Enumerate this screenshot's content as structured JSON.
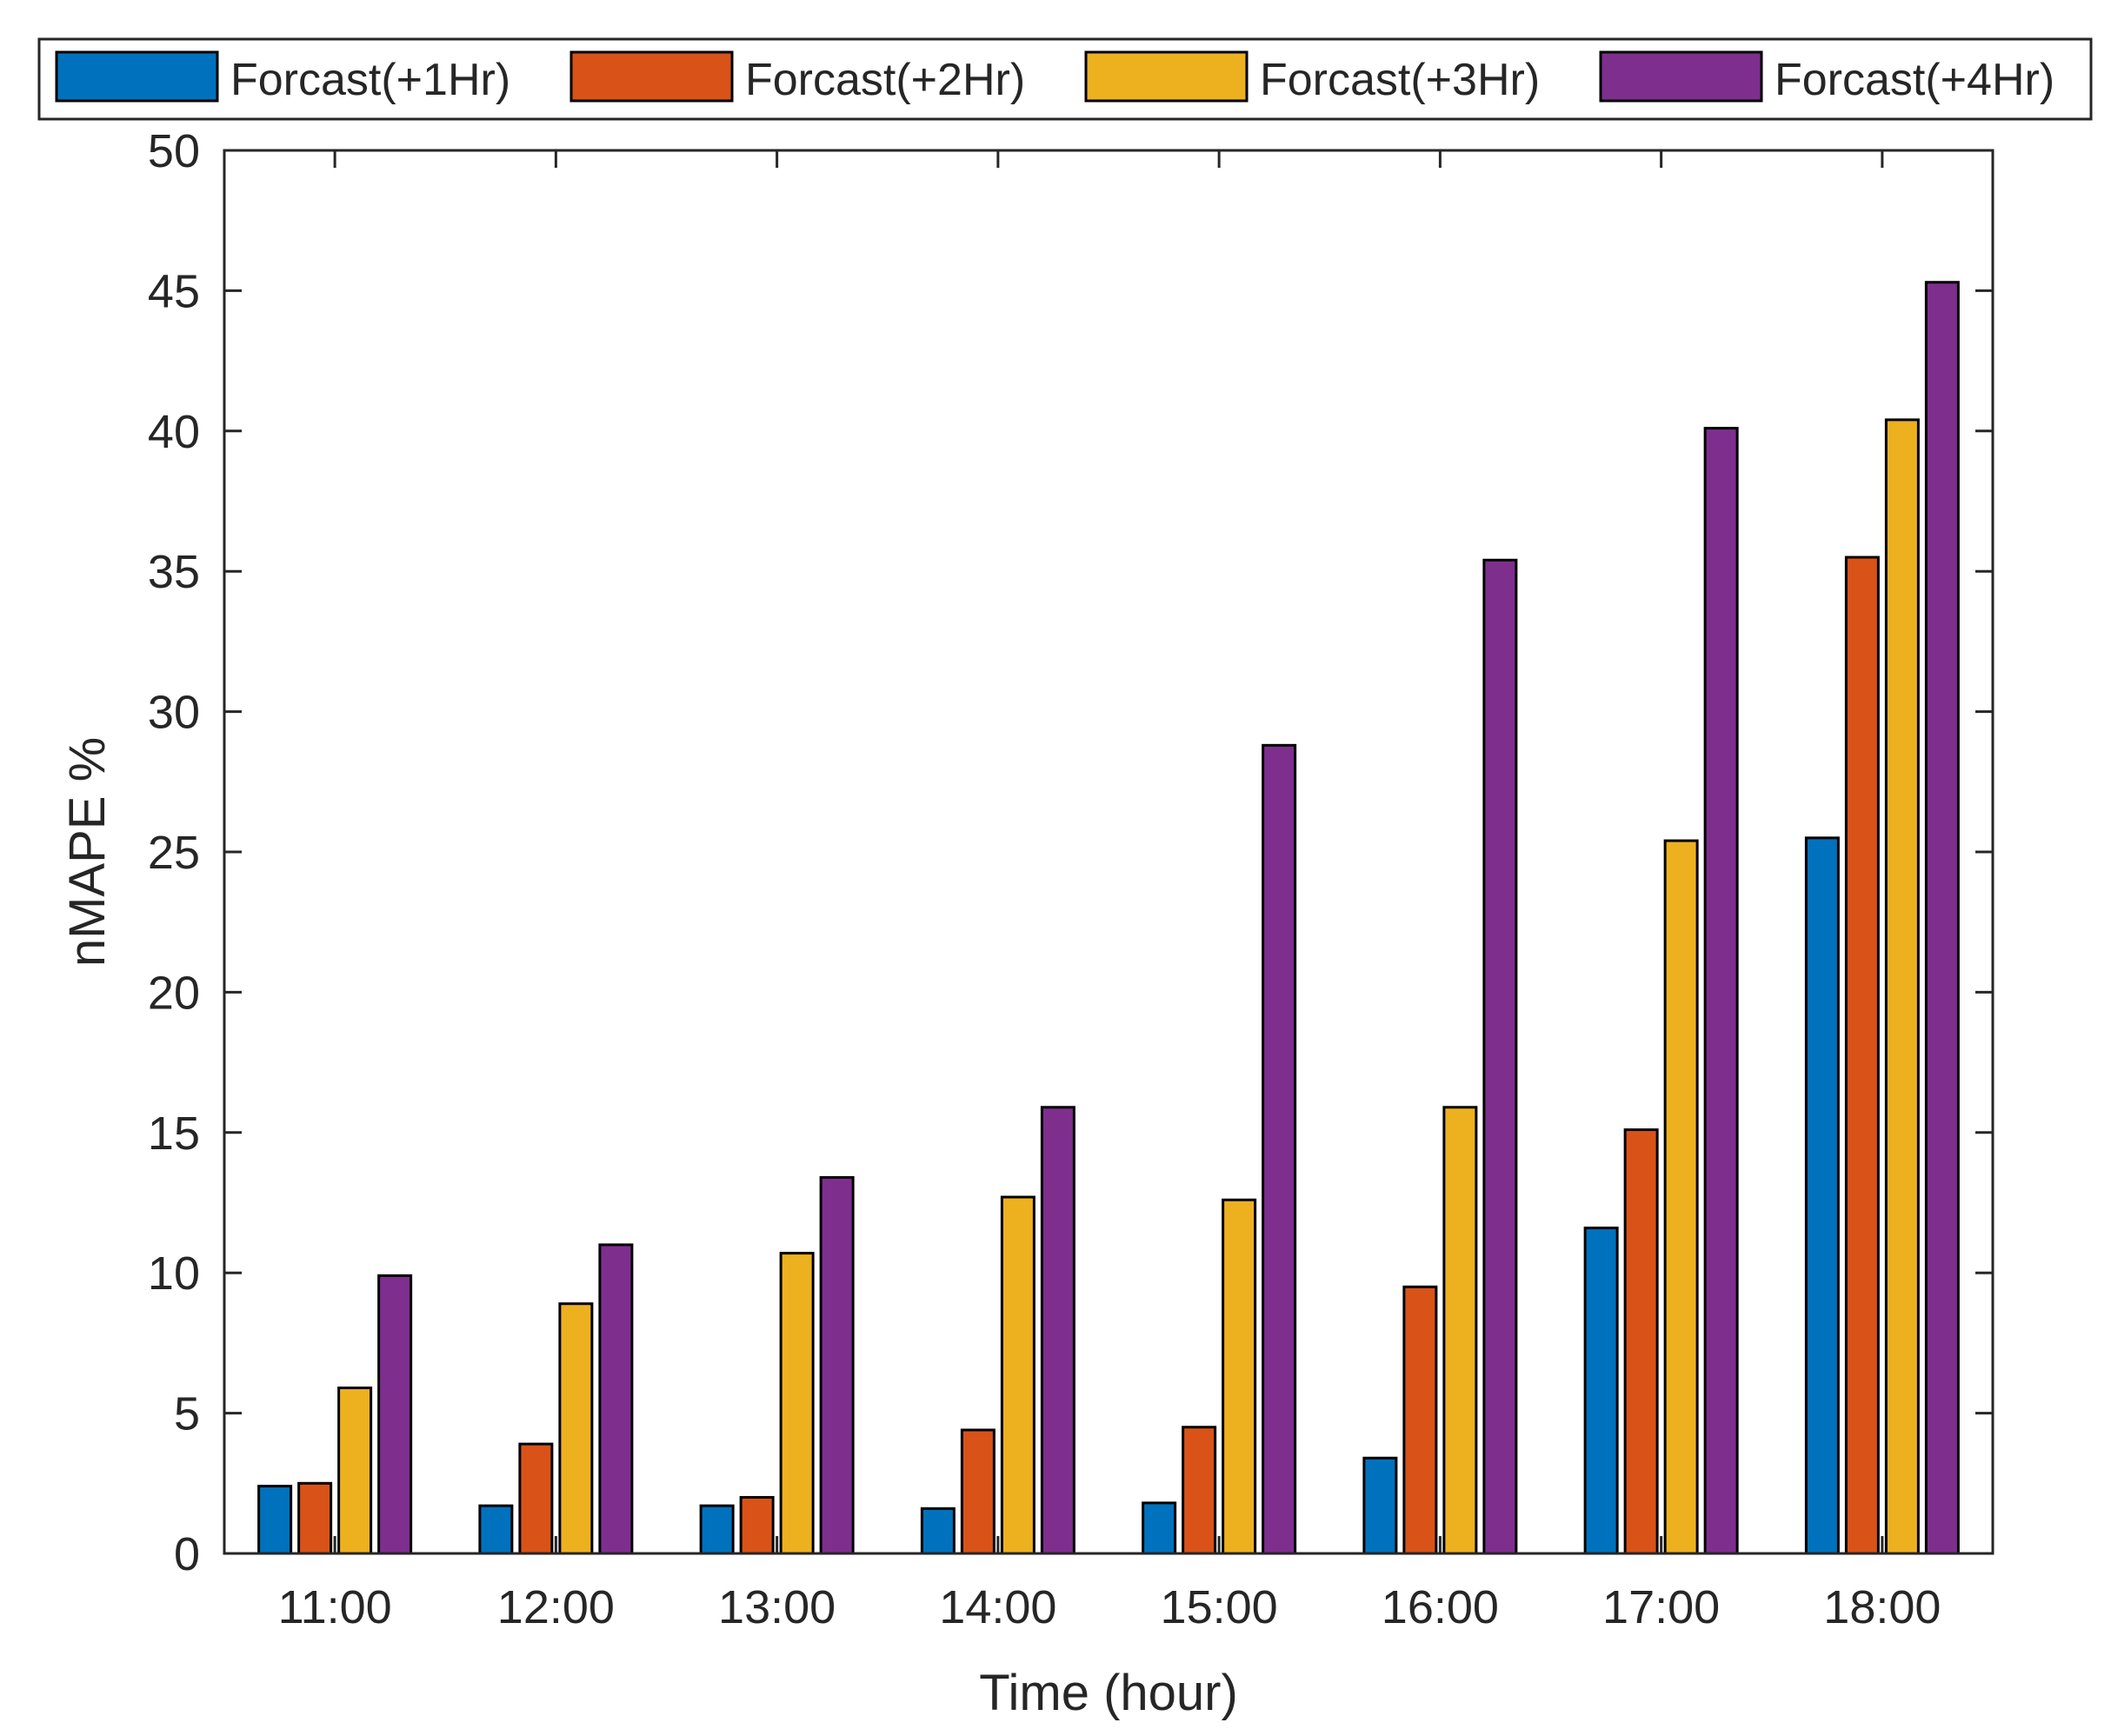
{
  "chart_data": {
    "type": "bar",
    "title": "",
    "xlabel": "Time (hour)",
    "ylabel": "nMAPE %",
    "categories": [
      "11:00",
      "12:00",
      "13:00",
      "14:00",
      "15:00",
      "16:00",
      "17:00",
      "18:00"
    ],
    "series": [
      {
        "name": "Forcast(+1Hr)",
        "color": "#0072BD",
        "values": [
          2.4,
          1.7,
          1.7,
          1.6,
          1.8,
          3.4,
          11.6,
          25.5
        ]
      },
      {
        "name": "Forcast(+2Hr)",
        "color": "#D95319",
        "values": [
          2.5,
          3.9,
          2.0,
          4.4,
          4.5,
          9.5,
          15.1,
          35.5
        ]
      },
      {
        "name": "Forcast(+3Hr)",
        "color": "#EDB120",
        "values": [
          5.9,
          8.9,
          10.7,
          12.7,
          12.6,
          15.9,
          25.4,
          40.4
        ]
      },
      {
        "name": "Forcast(+4Hr)",
        "color": "#7E2F8E",
        "values": [
          9.9,
          11.0,
          13.4,
          15.9,
          28.8,
          35.4,
          40.1,
          45.3
        ]
      }
    ],
    "ylim": [
      0,
      50
    ],
    "yticks": [
      0,
      5,
      10,
      15,
      20,
      25,
      30,
      35,
      40,
      45,
      50
    ],
    "grid": false,
    "legend_position": "top"
  }
}
